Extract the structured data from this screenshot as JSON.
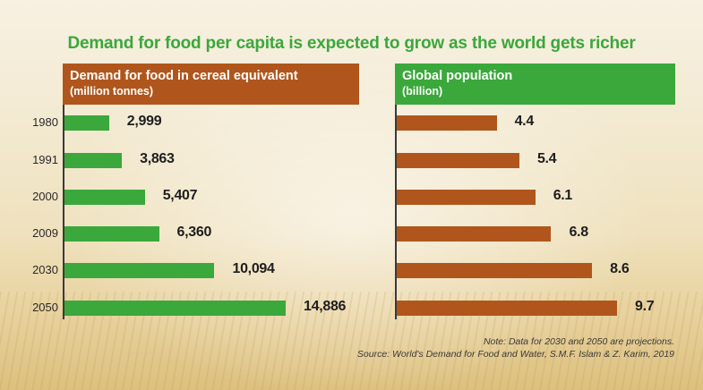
{
  "title": "Demand for food per capita is expected to grow as the world gets richer",
  "colors": {
    "green": "#3aa83b",
    "brown": "#b0561c"
  },
  "left_panel": {
    "title": "Demand for food in cereal equivalent",
    "unit": "(million tonnes)"
  },
  "right_panel": {
    "title": "Global population",
    "unit": "(billion)"
  },
  "note": "Note: Data for 2030 and 2050 are projections.",
  "source": "Source: World's Demand for Food and Water, S.M.F. Islam & Z. Karim, 2019",
  "chart_data": [
    {
      "type": "bar",
      "title": "Demand for food in cereal equivalent",
      "unit": "(million tonnes)",
      "orientation": "horizontal",
      "categories": [
        "1980",
        "1991",
        "2000",
        "2009",
        "2030",
        "2050"
      ],
      "values": [
        2999,
        3863,
        5407,
        6360,
        10094,
        14886
      ],
      "labels": [
        "2,999",
        "3,863",
        "5,407",
        "6,360",
        "10,094",
        "14,886"
      ],
      "color": "#3aa83b",
      "xlim": [
        0,
        15000
      ],
      "grid": false
    },
    {
      "type": "bar",
      "title": "Global population",
      "unit": "(billion)",
      "orientation": "horizontal",
      "categories": [
        "1980",
        "1991",
        "2000",
        "2009",
        "2030",
        "2050"
      ],
      "values": [
        4.4,
        5.4,
        6.1,
        6.8,
        8.6,
        9.7
      ],
      "labels": [
        "4.4",
        "5.4",
        "6.1",
        "6.8",
        "8.6",
        "9.7"
      ],
      "color": "#b0561c",
      "xlim": [
        0,
        10
      ],
      "grid": false
    }
  ]
}
